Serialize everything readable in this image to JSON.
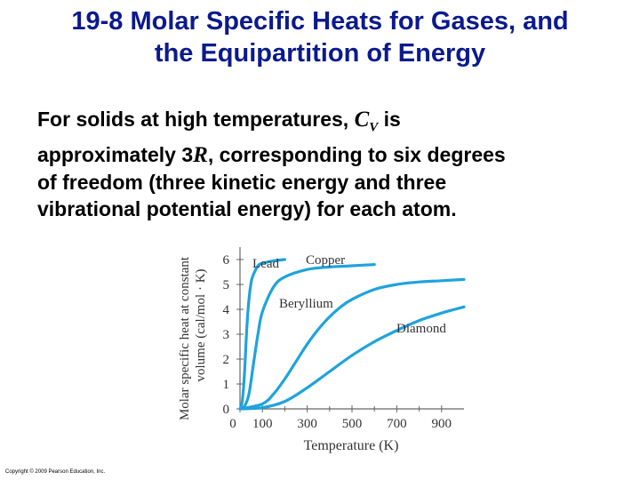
{
  "slide": {
    "title_line1": "19-8 Molar Specific Heats for Gases, and",
    "title_line2": "the Equipartition of Energy",
    "text_line1_a": "For solids at high temperatures, ",
    "text_cv": "C",
    "text_cv_sub": "V",
    "text_line1_b": " is",
    "text_line2_a": "approximately 3",
    "text_r": "R",
    "text_line2_b": ", corresponding to six degrees",
    "text_line3": "of freedom (three kinetic energy and three",
    "text_line4": "vibrational potential energy) for each atom.",
    "copyright": "Copyright © 2009 Pearson Education, Inc.",
    "title_color": "#0b1a8c",
    "curve_color": "#1fa3dc"
  },
  "chart_data": {
    "type": "line",
    "ylabel_line1": "Molar specific heat at constant",
    "ylabel_line2": "volume (cal/mol · K)",
    "xlabel": "Temperature (K)",
    "xlim": [
      0,
      1000
    ],
    "ylim": [
      0,
      6.5
    ],
    "x_ticks": [
      "0",
      "100",
      "300",
      "500",
      "700",
      "900"
    ],
    "x_tick_values": [
      0,
      100,
      300,
      500,
      700,
      900
    ],
    "y_ticks": [
      "0",
      "1",
      "2",
      "3",
      "4",
      "5",
      "6"
    ],
    "y_tick_values": [
      0,
      1,
      2,
      3,
      4,
      5,
      6
    ],
    "series": [
      {
        "name": "Lead",
        "x": [
          0,
          10,
          20,
          30,
          40,
          50,
          60,
          80,
          100,
          150,
          200
        ],
        "y": [
          0,
          0.3,
          1.4,
          3.2,
          4.4,
          5.1,
          5.4,
          5.75,
          5.85,
          5.95,
          6.0
        ]
      },
      {
        "name": "Copper",
        "x": [
          0,
          20,
          40,
          60,
          80,
          100,
          150,
          200,
          300,
          400,
          500,
          600
        ],
        "y": [
          0,
          0.1,
          0.6,
          1.8,
          3.0,
          3.9,
          4.9,
          5.3,
          5.6,
          5.7,
          5.75,
          5.8
        ]
      },
      {
        "name": "Beryllium",
        "x": [
          0,
          100,
          150,
          200,
          250,
          300,
          350,
          400,
          450,
          500,
          600,
          700,
          800,
          900,
          1000
        ],
        "y": [
          0,
          0.2,
          0.6,
          1.2,
          1.9,
          2.6,
          3.2,
          3.7,
          4.1,
          4.4,
          4.8,
          5.0,
          5.1,
          5.15,
          5.2
        ]
      },
      {
        "name": "Diamond",
        "x": [
          0,
          100,
          200,
          300,
          400,
          500,
          600,
          700,
          800,
          900,
          1000
        ],
        "y": [
          0,
          0.05,
          0.3,
          0.85,
          1.5,
          2.15,
          2.7,
          3.15,
          3.55,
          3.85,
          4.1
        ]
      }
    ],
    "grid": false
  }
}
